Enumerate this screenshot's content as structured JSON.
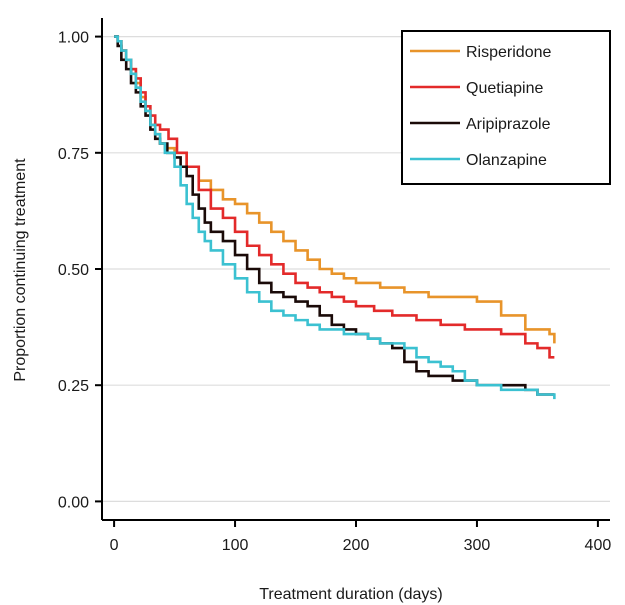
{
  "chart_data": {
    "type": "line",
    "step": true,
    "title": "",
    "xlabel": "Treatment duration (days)",
    "ylabel": "Proportion continuing treatment",
    "xlim": [
      -10,
      410
    ],
    "ylim": [
      -0.04,
      1.04
    ],
    "x_ticks": [
      0,
      100,
      200,
      300,
      400
    ],
    "y_ticks": [
      0.0,
      0.25,
      0.5,
      0.75,
      1.0
    ],
    "x_tick_labels": [
      "0",
      "100",
      "200",
      "300",
      "400"
    ],
    "y_tick_labels": [
      "0.00",
      "0.25",
      "0.50",
      "0.75",
      "1.00"
    ],
    "grid": "horizontal",
    "legend_position": "top-right",
    "series": [
      {
        "name": "Risperidone",
        "color": "#E8942A",
        "x": [
          0,
          3,
          6,
          10,
          14,
          18,
          22,
          26,
          30,
          34,
          38,
          42,
          50,
          60,
          70,
          80,
          90,
          100,
          110,
          120,
          130,
          140,
          150,
          160,
          170,
          180,
          190,
          200,
          210,
          220,
          240,
          260,
          280,
          300,
          320,
          340,
          350,
          360,
          364
        ],
        "y": [
          1.0,
          0.99,
          0.97,
          0.95,
          0.93,
          0.9,
          0.87,
          0.84,
          0.81,
          0.79,
          0.77,
          0.76,
          0.75,
          0.72,
          0.69,
          0.67,
          0.65,
          0.64,
          0.62,
          0.6,
          0.58,
          0.56,
          0.54,
          0.52,
          0.5,
          0.49,
          0.48,
          0.47,
          0.47,
          0.46,
          0.45,
          0.44,
          0.44,
          0.43,
          0.4,
          0.37,
          0.37,
          0.36,
          0.34
        ]
      },
      {
        "name": "Quetiapine",
        "color": "#E32A2A",
        "x": [
          0,
          3,
          6,
          10,
          14,
          18,
          22,
          26,
          30,
          34,
          38,
          45,
          52,
          60,
          70,
          80,
          90,
          100,
          110,
          120,
          130,
          140,
          150,
          160,
          170,
          180,
          190,
          200,
          215,
          230,
          250,
          270,
          290,
          300,
          320,
          340,
          350,
          360,
          364
        ],
        "y": [
          1.0,
          0.99,
          0.97,
          0.95,
          0.93,
          0.91,
          0.88,
          0.85,
          0.83,
          0.81,
          0.8,
          0.78,
          0.75,
          0.72,
          0.67,
          0.63,
          0.61,
          0.58,
          0.55,
          0.53,
          0.51,
          0.49,
          0.47,
          0.46,
          0.45,
          0.44,
          0.43,
          0.42,
          0.41,
          0.4,
          0.39,
          0.38,
          0.37,
          0.37,
          0.36,
          0.34,
          0.33,
          0.31,
          0.31
        ]
      },
      {
        "name": "Aripiprazole",
        "color": "#1a0a08",
        "x": [
          0,
          3,
          6,
          10,
          14,
          18,
          22,
          26,
          30,
          34,
          38,
          44,
          50,
          55,
          60,
          65,
          70,
          75,
          80,
          90,
          100,
          110,
          120,
          130,
          140,
          150,
          160,
          170,
          180,
          190,
          200,
          210,
          220,
          230,
          240,
          250,
          260,
          280,
          300,
          320,
          340,
          350,
          364
        ],
        "y": [
          1.0,
          0.98,
          0.95,
          0.93,
          0.9,
          0.88,
          0.85,
          0.83,
          0.8,
          0.78,
          0.77,
          0.75,
          0.74,
          0.72,
          0.7,
          0.66,
          0.63,
          0.6,
          0.58,
          0.56,
          0.53,
          0.5,
          0.47,
          0.45,
          0.44,
          0.43,
          0.42,
          0.4,
          0.38,
          0.37,
          0.36,
          0.35,
          0.34,
          0.33,
          0.3,
          0.28,
          0.27,
          0.26,
          0.25,
          0.25,
          0.24,
          0.23,
          0.23
        ]
      },
      {
        "name": "Olanzapine",
        "color": "#3BC1D1",
        "x": [
          0,
          3,
          6,
          10,
          14,
          18,
          22,
          26,
          30,
          34,
          38,
          42,
          50,
          55,
          60,
          65,
          70,
          75,
          80,
          90,
          100,
          110,
          120,
          130,
          140,
          150,
          160,
          170,
          180,
          190,
          200,
          210,
          220,
          230,
          240,
          250,
          260,
          270,
          280,
          290,
          300,
          320,
          340,
          350,
          364
        ],
        "y": [
          1.0,
          0.99,
          0.97,
          0.95,
          0.92,
          0.89,
          0.86,
          0.84,
          0.81,
          0.79,
          0.77,
          0.75,
          0.72,
          0.68,
          0.64,
          0.61,
          0.58,
          0.56,
          0.54,
          0.51,
          0.48,
          0.45,
          0.43,
          0.41,
          0.4,
          0.39,
          0.38,
          0.37,
          0.37,
          0.36,
          0.36,
          0.35,
          0.34,
          0.34,
          0.33,
          0.31,
          0.3,
          0.29,
          0.28,
          0.26,
          0.25,
          0.24,
          0.24,
          0.23,
          0.22
        ]
      }
    ]
  }
}
